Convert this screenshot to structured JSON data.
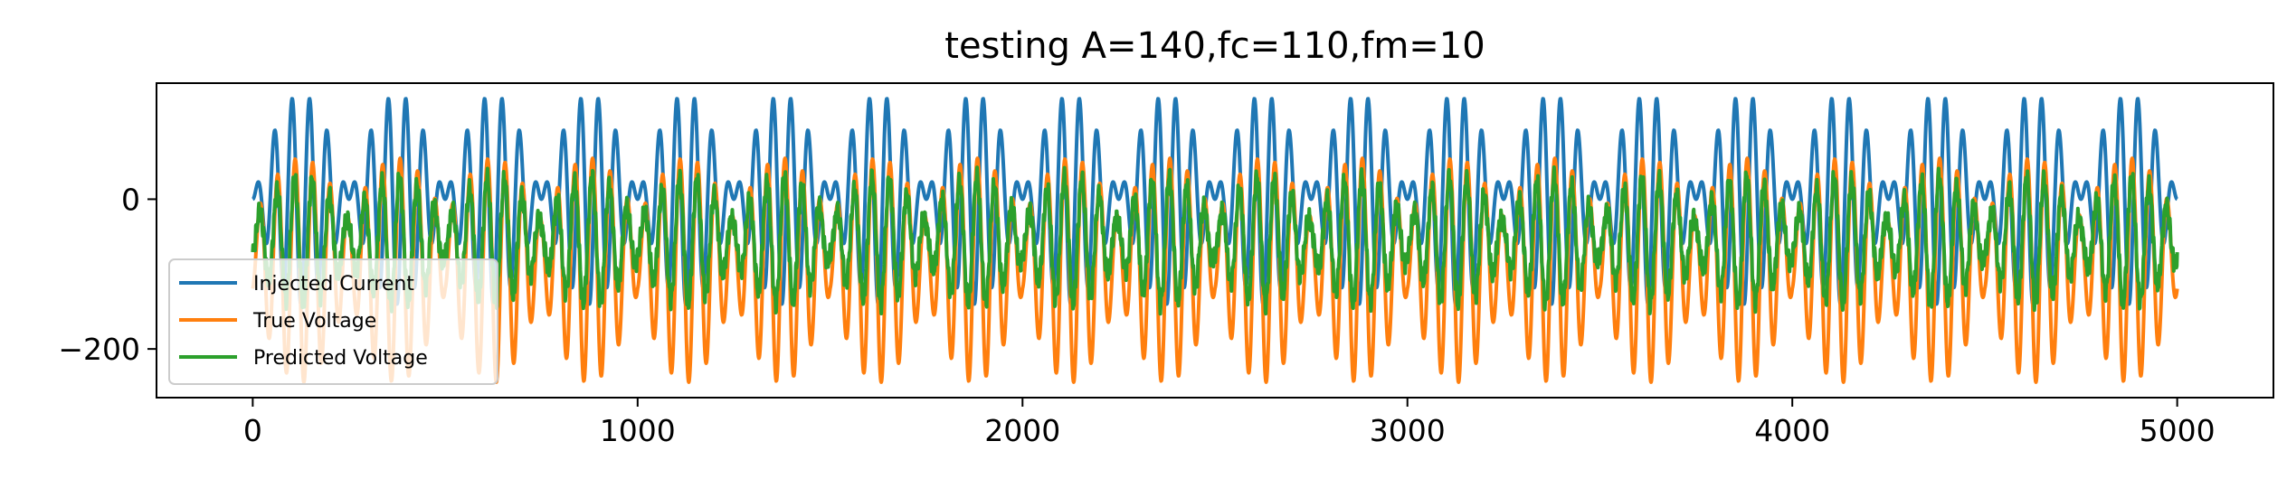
{
  "chart_data": {
    "type": "line",
    "title": "testing A=140,fc=110,fm=10",
    "xlabel": "",
    "ylabel": "",
    "xlim": [
      -250,
      5250
    ],
    "ylim": [
      -265,
      155
    ],
    "x_ticks": [
      0,
      1000,
      2000,
      3000,
      4000,
      5000
    ],
    "x_tick_labels": [
      "0",
      "1000",
      "2000",
      "3000",
      "4000",
      "5000"
    ],
    "y_ticks": [
      -200,
      0
    ],
    "y_tick_labels": [
      "−200",
      "0"
    ],
    "grid": false,
    "legend_position": "lower-left",
    "x_range": [
      0,
      5000
    ],
    "series": [
      {
        "name": "Injected Current",
        "color": "#1f77b4",
        "model": "A*sin(2*pi*fc*t)*sin(2*pi*fm*t), t = x/5000",
        "A": 140,
        "fc": 110,
        "fm": 10,
        "observed_range": [
          -140,
          140
        ]
      },
      {
        "name": "True Voltage",
        "color": "#ff7f0e",
        "observed_range": [
          -245,
          55
        ]
      },
      {
        "name": "Predicted Voltage",
        "color": "#2ca02c",
        "observed_range": [
          -165,
          10
        ]
      }
    ]
  }
}
